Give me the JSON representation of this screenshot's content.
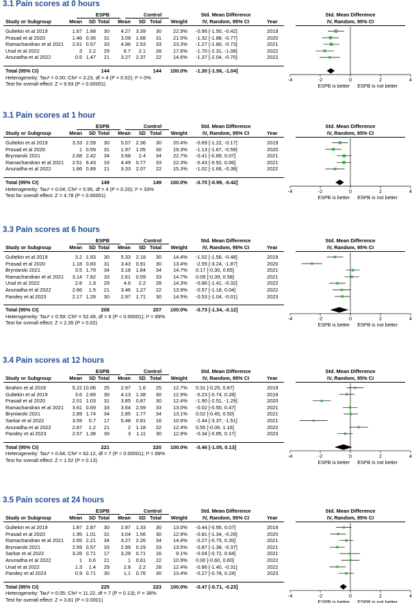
{
  "columns": {
    "study": "Study or Subgroup",
    "espb": "ESPB",
    "control": "Control",
    "mean": "Mean",
    "sd": "SD",
    "total": "Total",
    "weight": "Weight",
    "smd": "Std. Mean Difference",
    "method": "IV, Random, 95% CI",
    "year": "Year"
  },
  "axis_labels": {
    "left": "ESPB is better",
    "right": "ESPB is not better"
  },
  "colors": {
    "title": "#1f4e9b",
    "square": "#3cb043",
    "diamond": "#000000"
  },
  "chart_data": [
    {
      "type": "forest",
      "title": "3.1 Pain scores at 0 hours",
      "xlim": [
        -4,
        4
      ],
      "xticks": [
        "-4",
        "-2",
        "0",
        "2",
        "4"
      ],
      "studies": [
        {
          "name": "Gultekin et al 2019",
          "em": "1.67",
          "esd": "1.68",
          "en": "30",
          "cm": "4.27",
          "csd": "3.39",
          "cn": "30",
          "weight": "22.9%",
          "ci_text": "-0.96 [-1.50, -0.42]",
          "year": "2019",
          "est": -0.96,
          "lo": -1.5,
          "hi": -0.42,
          "w": 22.9
        },
        {
          "name": "Prasad et al 2020",
          "em": "1.46",
          "esd": "0.36",
          "en": "31",
          "cm": "3.09",
          "csd": "1.68",
          "cn": "31",
          "weight": "21.5%",
          "ci_text": "-1.32 [-1.88, -0.77]",
          "year": "2020",
          "est": -1.32,
          "lo": -1.88,
          "hi": -0.77,
          "w": 21.5
        },
        {
          "name": "Ramachandran et al 2021",
          "em": "2.61",
          "esd": "0.57",
          "en": "33",
          "cm": "4.96",
          "csd": "2.53",
          "cn": "33",
          "weight": "23.3%",
          "ci_text": "-1.27 [-1.80, -0.73]",
          "year": "2021",
          "est": -1.27,
          "lo": -1.8,
          "hi": -0.73,
          "w": 23.3
        },
        {
          "name": "Unal et al 2022",
          "em": "3",
          "esd": "2.2",
          "en": "29",
          "cm": "6.7",
          "csd": "2.1",
          "cn": "28",
          "weight": "17.6%",
          "ci_text": "-1.70 [-2.31, -1.08]",
          "year": "2022",
          "est": -1.7,
          "lo": -2.31,
          "hi": -1.08,
          "w": 17.6
        },
        {
          "name": "Anuradha et al 2022",
          "em": "0.5",
          "esd": "1.47",
          "en": "21",
          "cm": "3.27",
          "csd": "2.37",
          "cn": "22",
          "weight": "14.6%",
          "ci_text": "-1.37 [-2.04, -0.70]",
          "year": "2022",
          "est": -1.37,
          "lo": -2.04,
          "hi": -0.7,
          "w": 14.6
        }
      ],
      "total": {
        "label": "Total (95% CI)",
        "en": "144",
        "cn": "144",
        "weight": "100.0%",
        "ci_text": "-1.30 [-1.56, -1.04]",
        "est": -1.3,
        "lo": -1.56,
        "hi": -1.04
      },
      "heterogeneity": "Heterogeneity: Tau² = 0.00; Chi² = 3.23, df = 4 (P = 0.52); I² = 0%",
      "overall": "Test for overall effect: Z = 9.93 (P < 0.00001)"
    },
    {
      "type": "forest",
      "title": "3.1 Pain scores at 1 hour",
      "xlim": [
        -4,
        4
      ],
      "xticks": [
        "-4",
        "-2",
        "0",
        "2",
        "4"
      ],
      "studies": [
        {
          "name": "Gultekin et al 2019",
          "em": "3.33",
          "esd": "2.59",
          "en": "30",
          "cm": "5.07",
          "csd": "2.36",
          "cn": "30",
          "weight": "20.4%",
          "ci_text": "-0.69 [-1.22, -0.17]",
          "year": "2019",
          "est": -0.69,
          "lo": -1.22,
          "hi": -0.17,
          "w": 20.4
        },
        {
          "name": "Prasad et al 2020",
          "em": "1",
          "esd": "0.59",
          "en": "31",
          "cm": "1.97",
          "csd": "1.05",
          "cn": "30",
          "weight": "19.3%",
          "ci_text": "-1.13 [-1.67, -0.59]",
          "year": "2020",
          "est": -1.13,
          "lo": -1.67,
          "hi": -0.59,
          "w": 19.3
        },
        {
          "name": "Bryniarski 2021",
          "em": "2.68",
          "esd": "2.42",
          "en": "34",
          "cm": "3.68",
          "csd": "2.4",
          "cn": "34",
          "weight": "22.7%",
          "ci_text": "-0.41 [-0.89, 0.07]",
          "year": "2021",
          "est": -0.41,
          "lo": -0.89,
          "hi": 0.07,
          "w": 22.7
        },
        {
          "name": "Ramachandran et al 2021",
          "em": "2.51",
          "esd": "6.43",
          "en": "33",
          "cm": "4.49",
          "csd": "0.77",
          "cn": "33",
          "weight": "22.3%",
          "ci_text": "-0.43 [-0.92, 0.06]",
          "year": "2021",
          "est": -0.43,
          "lo": -0.92,
          "hi": 0.06,
          "w": 22.3
        },
        {
          "name": "Anuradha et al 2022",
          "em": "1.66",
          "esd": "0.89",
          "en": "21",
          "cm": "3.33",
          "csd": "2.07",
          "cn": "22",
          "weight": "15.3%",
          "ci_text": "-1.02 [-1.66, -0.38]",
          "year": "2022",
          "est": -1.02,
          "lo": -1.66,
          "hi": -0.38,
          "w": 15.3
        }
      ],
      "total": {
        "label": "Total (95% CI)",
        "en": "149",
        "cn": "149",
        "weight": "100.0%",
        "ci_text": "-0.70 [-0.99, -0.42]",
        "est": -0.7,
        "lo": -0.99,
        "hi": -0.42
      },
      "heterogeneity": "Heterogeneity: Tau² = 0.04; Chi² = 5.95, df = 4 (P = 0.20); I² = 33%",
      "overall": "Test for overall effect: Z = 4.78 (P < 0.00001)"
    },
    {
      "type": "forest",
      "title": "3.3 Pain scores at 6 hours",
      "xlim": [
        -4,
        4
      ],
      "xticks": [
        "-4",
        "-2",
        "0",
        "2",
        "4"
      ],
      "studies": [
        {
          "name": "Gultekin et al 2019",
          "em": "3.2",
          "esd": "1.93",
          "en": "30",
          "cm": "5.33",
          "csd": "2.18",
          "cn": "30",
          "weight": "14.4%",
          "ci_text": "-1.02 [-1.56, -0.48]",
          "year": "2019",
          "est": -1.02,
          "lo": -1.56,
          "hi": -0.48,
          "w": 14.4
        },
        {
          "name": "Prasad et al 2020",
          "em": "1.18",
          "esd": "0.83",
          "en": "31",
          "cm": "3.43",
          "csd": "0.91",
          "cn": "30",
          "weight": "13.4%",
          "ci_text": "-2.55 [-3.24, -1.87]",
          "year": "2020",
          "est": -2.55,
          "lo": -3.24,
          "hi": -1.87,
          "w": 13.4
        },
        {
          "name": "Bryniarski 2021",
          "em": "3.5",
          "esd": "1.79",
          "en": "34",
          "cm": "3.18",
          "csd": "1.84",
          "cn": "34",
          "weight": "14.7%",
          "ci_text": "0.17 [-0.30, 0.65]",
          "year": "2021",
          "est": 0.17,
          "lo": -0.3,
          "hi": 0.65,
          "w": 14.7
        },
        {
          "name": "Ramachandran et al 2021",
          "em": "3.14",
          "esd": "7.82",
          "en": "33",
          "cm": "2.61",
          "csd": "0.59",
          "cn": "33",
          "weight": "14.7%",
          "ci_text": "0.09 [-0.39, 0.58]",
          "year": "2021",
          "est": 0.09,
          "lo": -0.39,
          "hi": 0.58,
          "w": 14.7
        },
        {
          "name": "Unal et al 2022",
          "em": "2.8",
          "esd": "1.9",
          "en": "29",
          "cm": "4.6",
          "csd": "2.2",
          "cn": "28",
          "weight": "14.3%",
          "ci_text": "-0.86 [-1.41, -0.32]",
          "year": "2022",
          "est": -0.86,
          "lo": -1.41,
          "hi": -0.32,
          "w": 14.3
        },
        {
          "name": "Anuradha et al 2022",
          "em": "2.66",
          "esd": "1.5",
          "en": "21",
          "cm": "3.46",
          "csd": "1.27",
          "cn": "22",
          "weight": "13.9%",
          "ci_text": "-0.57 [-1.18, 0.04]",
          "year": "2022",
          "est": -0.57,
          "lo": -1.18,
          "hi": 0.04,
          "w": 13.9
        },
        {
          "name": "Pandey et al 2023",
          "em": "2.17",
          "esd": "1.28",
          "en": "30",
          "cm": "2.97",
          "csd": "1.71",
          "cn": "30",
          "weight": "14.5%",
          "ci_text": "-0.53 [-1.04, -0.01]",
          "year": "2023",
          "est": -0.53,
          "lo": -1.04,
          "hi": -0.01,
          "w": 14.5
        }
      ],
      "total": {
        "label": "Total (95% CI)",
        "en": "208",
        "cn": "207",
        "weight": "100.0%",
        "ci_text": "-0.73 [-1.34, -0.12]",
        "est": -0.73,
        "lo": -1.34,
        "hi": -0.12
      },
      "heterogeneity": "Heterogeneity: Tau² = 0.59; Chi² = 52.49, df = 6 (P < 0.00001); I² = 89%",
      "overall": "Test for overall effect: Z = 2.35 (P = 0.02)"
    },
    {
      "type": "forest",
      "title": "3.4 Pain scores at 12 hours",
      "xlim": [
        -4,
        4
      ],
      "xticks": [
        "-4",
        "-2",
        "0",
        "2",
        "4"
      ],
      "studies": [
        {
          "name": "Ibrahim et al 2019",
          "em": "5.22",
          "esd": "10.06",
          "en": "25",
          "cm": "2.97",
          "csd": "1.6",
          "cn": "25",
          "weight": "12.7%",
          "ci_text": "0.31 [-0.25, 0.87]",
          "year": "2019",
          "est": 0.31,
          "lo": -0.25,
          "hi": 0.87,
          "w": 12.7
        },
        {
          "name": "Gultekin et al 2019",
          "em": "3.6",
          "esd": "2.89",
          "en": "30",
          "cm": "4.13",
          "csd": "1.38",
          "cn": "30",
          "weight": "12.9%",
          "ci_text": "-0.23 [-0.74, 0.28]",
          "year": "2019",
          "est": -0.23,
          "lo": -0.74,
          "hi": 0.28,
          "w": 12.9
        },
        {
          "name": "Prasad et al 2020",
          "em": "2.01",
          "esd": "1.03",
          "en": "31",
          "cm": "3.85",
          "csd": "0.87",
          "cn": "30",
          "weight": "12.4%",
          "ci_text": "-1.90 [-2.51, -1.29]",
          "year": "2020",
          "est": -1.9,
          "lo": -2.51,
          "hi": -1.29,
          "w": 12.4
        },
        {
          "name": "Ramachandran et al 2021",
          "em": "3.61",
          "esd": "0.69",
          "en": "33",
          "cm": "3.64",
          "csd": "2.59",
          "cn": "33",
          "weight": "13.0%",
          "ci_text": "-0.02 [-0.50, 0.47]",
          "year": "2021",
          "est": -0.02,
          "lo": -0.5,
          "hi": 0.47,
          "w": 13.0
        },
        {
          "name": "Bryniarski 2021",
          "em": "2.89",
          "esd": "1.74",
          "en": "34",
          "cm": "2.85",
          "csd": "1.77",
          "cn": "34",
          "weight": "13.1%",
          "ci_text": "0.02 [-0.45, 0.50]",
          "year": "2021",
          "est": 0.02,
          "lo": -0.45,
          "hi": 0.5,
          "w": 13.1
        },
        {
          "name": "Sarkar et al 2022",
          "em": "3.59",
          "esd": "0.7",
          "en": "17",
          "cm": "5.48",
          "csd": "0.81",
          "cn": "16",
          "weight": "10.6%",
          "ci_text": "-2.44 [-3.37, -1.51]",
          "year": "2021",
          "est": -2.44,
          "lo": -3.37,
          "hi": -1.51,
          "w": 10.6
        },
        {
          "name": "Anuradha et al 2022",
          "em": "2.67",
          "esd": "1.2",
          "en": "21",
          "cm": "2",
          "csd": "1.18",
          "cn": "22",
          "weight": "12.4%",
          "ci_text": "0.55 [-0.06, 1.16]",
          "year": "2022",
          "est": 0.55,
          "lo": -0.06,
          "hi": 1.16,
          "w": 12.4
        },
        {
          "name": "Pandey et al 2023",
          "em": "2.57",
          "esd": "1.38",
          "en": "30",
          "cm": "3",
          "csd": "1.11",
          "cn": "30",
          "weight": "12.9%",
          "ci_text": "-0.34 [-0.85, 0.17]",
          "year": "2023",
          "est": -0.34,
          "lo": -0.85,
          "hi": 0.17,
          "w": 12.9
        }
      ],
      "total": {
        "label": "Total (95% CI)",
        "en": "221",
        "cn": "220",
        "weight": "100.0%",
        "ci_text": "-0.46 [-1.05, 0.13]",
        "est": -0.46,
        "lo": -1.05,
        "hi": 0.13
      },
      "heterogeneity": "Heterogeneity: Tau² = 0.64; Chi² = 62.12, df = 7 (P < 0.00001); I² = 89%",
      "overall": "Test for overall effect: Z = 1.52 (P = 0.13)"
    },
    {
      "type": "forest",
      "title": "3.5 Pain scores at 24 hours",
      "xlim": [
        -4,
        4
      ],
      "xticks": [
        "-4",
        "-2",
        "0",
        "2",
        "4"
      ],
      "studies": [
        {
          "name": "Gultekin et al 2019",
          "em": "1.87",
          "esd": "2.87",
          "en": "30",
          "cm": "2.87",
          "csd": "1.33",
          "cn": "30",
          "weight": "13.0%",
          "ci_text": "-0.44 [-0.95, 0.07]",
          "year": "2019",
          "est": -0.44,
          "lo": -0.95,
          "hi": 0.07,
          "w": 13.0
        },
        {
          "name": "Prasad et al 2020",
          "em": "1.95",
          "esd": "1.01",
          "en": "31",
          "cm": "3.04",
          "csd": "1.56",
          "cn": "30",
          "weight": "12.9%",
          "ci_text": "-0.81 [-1.34, -0.29]",
          "year": "2020",
          "est": -0.81,
          "lo": -1.34,
          "hi": -0.29,
          "w": 12.9
        },
        {
          "name": "Ramachandran et al 2021",
          "em": "2.65",
          "esd": "2.21",
          "en": "34",
          "cm": "3.27",
          "csd": "2.26",
          "cn": "34",
          "weight": "14.4%",
          "ci_text": "-0.27 [-0.75, 0.20]",
          "year": "2021",
          "est": -0.27,
          "lo": -0.75,
          "hi": 0.2,
          "w": 14.4
        },
        {
          "name": "Bryniarski 2021",
          "em": "2.59",
          "esd": "0.57",
          "en": "33",
          "cm": "2.99",
          "csd": "0.29",
          "cn": "33",
          "weight": "13.5%",
          "ci_text": "-0.87 [-1.38, -0.37]",
          "year": "2021",
          "est": -0.87,
          "lo": -1.38,
          "hi": -0.37,
          "w": 13.5
        },
        {
          "name": "Sarkar et al 2022",
          "em": "3.26",
          "esd": "0.71",
          "en": "17",
          "cm": "3.29",
          "csd": "0.71",
          "cn": "16",
          "weight": "9.1%",
          "ci_text": "-0.04 [-0.72, 0.64]",
          "year": "2021",
          "est": -0.04,
          "lo": -0.72,
          "hi": 0.64,
          "w": 9.1
        },
        {
          "name": "Anuradha et al 2022",
          "em": "1",
          "esd": "0.6",
          "en": "21",
          "cm": "1",
          "csd": "0.61",
          "cn": "22",
          "weight": "10.9%",
          "ci_text": "0.00 [-0.60, 0.60]",
          "year": "2022",
          "est": 0.0,
          "lo": -0.6,
          "hi": 0.6,
          "w": 10.9
        },
        {
          "name": "Unal et al 2022",
          "em": "1.3",
          "esd": "1.4",
          "en": "29",
          "cm": "2.8",
          "csd": "2.2",
          "cn": "28",
          "weight": "12.4%",
          "ci_text": "-0.86 [-1.40, -0.31]",
          "year": "2022",
          "est": -0.86,
          "lo": -1.4,
          "hi": -0.31,
          "w": 12.4
        },
        {
          "name": "Pandey et al 2023",
          "em": "0.9",
          "esd": "0.71",
          "en": "30",
          "cm": "1.1",
          "csd": "0.76",
          "cn": "30",
          "weight": "13.4%",
          "ci_text": "-0.27 [-0.78, 0.24]",
          "year": "2023",
          "est": -0.27,
          "lo": -0.78,
          "hi": 0.24,
          "w": 13.4
        }
      ],
      "total": {
        "label": "Total (95% CI)",
        "en": "225",
        "cn": "223",
        "weight": "100.0%",
        "ci_text": "-0.47 [-0.71, -0.23]",
        "est": -0.47,
        "lo": -0.71,
        "hi": -0.23
      },
      "heterogeneity": "Heterogeneity: Tau² = 0.05; Chi² = 11.22, df = 7 (P = 0.13); I² = 38%",
      "overall": "Test for overall effect: Z = 3.81 (P = 0.0001)"
    }
  ]
}
